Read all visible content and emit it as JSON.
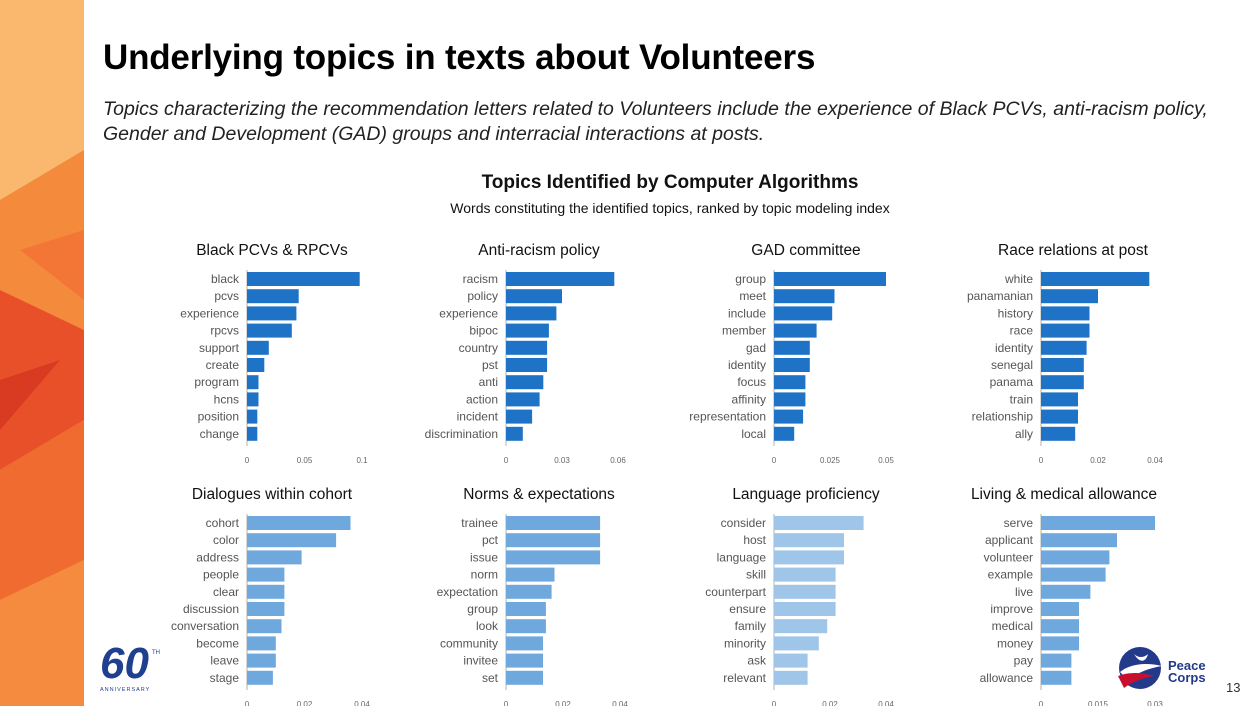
{
  "header": {
    "title": "Underlying topics in texts about Volunteers",
    "subtitle": "Topics characterizing the recommendation letters related to Volunteers include the experience of Black PCVs, anti-racism policy, Gender and Development (GAD) groups and interracial interactions at posts."
  },
  "chart": {
    "heading": "Topics Identified by Computer Algorithms",
    "subheading": "Words constituting the identified topics, ranked by topic modeling index"
  },
  "colors": {
    "top_row_bar": "#1f73c6",
    "bottom_row_bar": "#6fa8dc",
    "language_bar": "#9fc5e8",
    "axis_line": "#b0b0b0"
  },
  "footer": {
    "logo_line1": "Peace",
    "logo_line2": "Corps",
    "page_number": "13",
    "anniversary_logo_text": "60 TH ANNIVERSARY"
  },
  "chart_data": [
    {
      "type": "bar",
      "orientation": "horizontal",
      "title": "Black PCVs & RPCVs",
      "categories": [
        "black",
        "pcvs",
        "experience",
        "rpcvs",
        "support",
        "create",
        "program",
        "hcns",
        "position",
        "change"
      ],
      "values": [
        0.098,
        0.045,
        0.043,
        0.039,
        0.019,
        0.015,
        0.01,
        0.01,
        0.009,
        0.009
      ],
      "xlim": [
        0,
        0.1
      ],
      "xticks": [
        "0",
        "0.05",
        "0.1"
      ],
      "color": "#1f73c6"
    },
    {
      "type": "bar",
      "orientation": "horizontal",
      "title": "Anti-racism policy",
      "categories": [
        "racism",
        "policy",
        "experience",
        "bipoc",
        "country",
        "pst",
        "anti",
        "action",
        "incident",
        "discrimination"
      ],
      "values": [
        0.058,
        0.03,
        0.027,
        0.023,
        0.022,
        0.022,
        0.02,
        0.018,
        0.014,
        0.009
      ],
      "xlim": [
        0,
        0.06
      ],
      "xticks": [
        "0",
        "0.03",
        "0.06"
      ],
      "color": "#1f73c6"
    },
    {
      "type": "bar",
      "orientation": "horizontal",
      "title": "GAD committee",
      "categories": [
        "group",
        "meet",
        "include",
        "member",
        "gad",
        "identity",
        "focus",
        "affinity",
        "representation",
        "local"
      ],
      "values": [
        0.05,
        0.027,
        0.026,
        0.019,
        0.016,
        0.016,
        0.014,
        0.014,
        0.013,
        0.009
      ],
      "xlim": [
        0,
        0.05
      ],
      "xticks": [
        "0",
        "0.025",
        "0.05"
      ],
      "color": "#1f73c6"
    },
    {
      "type": "bar",
      "orientation": "horizontal",
      "title": "Race relations at post",
      "categories": [
        "white",
        "panamanian",
        "history",
        "race",
        "identity",
        "senegal",
        "panama",
        "train",
        "relationship",
        "ally"
      ],
      "values": [
        0.038,
        0.02,
        0.017,
        0.017,
        0.016,
        0.015,
        0.015,
        0.013,
        0.013,
        0.012
      ],
      "xlim": [
        0,
        0.04
      ],
      "xticks": [
        "0",
        "0.02",
        "0.04"
      ],
      "color": "#1f73c6"
    },
    {
      "type": "bar",
      "orientation": "horizontal",
      "title": "Dialogues within cohort",
      "categories": [
        "cohort",
        "color",
        "address",
        "people",
        "clear",
        "discussion",
        "conversation",
        "become",
        "leave",
        "stage"
      ],
      "values": [
        0.036,
        0.031,
        0.019,
        0.013,
        0.013,
        0.013,
        0.012,
        0.01,
        0.01,
        0.009
      ],
      "xlim": [
        0,
        0.04
      ],
      "xticks": [
        "0",
        "0.02",
        "0.04"
      ],
      "color": "#6fa8dc"
    },
    {
      "type": "bar",
      "orientation": "horizontal",
      "title": "Norms & expectations",
      "categories": [
        "trainee",
        "pct",
        "issue",
        "norm",
        "expectation",
        "group",
        "look",
        "community",
        "invitee",
        "set"
      ],
      "values": [
        0.033,
        0.033,
        0.033,
        0.017,
        0.016,
        0.014,
        0.014,
        0.013,
        0.013,
        0.013
      ],
      "xlim": [
        0,
        0.04
      ],
      "xticks": [
        "0",
        "0.02",
        "0.04"
      ],
      "color": "#6fa8dc"
    },
    {
      "type": "bar",
      "orientation": "horizontal",
      "title": "Language proficiency",
      "categories": [
        "consider",
        "host",
        "language",
        "skill",
        "counterpart",
        "ensure",
        "family",
        "minority",
        "ask",
        "relevant"
      ],
      "values": [
        0.032,
        0.025,
        0.025,
        0.022,
        0.022,
        0.022,
        0.019,
        0.016,
        0.012,
        0.012
      ],
      "xlim": [
        0,
        0.04
      ],
      "xticks": [
        "0",
        "0.02",
        "0.04"
      ],
      "color": "#9fc5e8"
    },
    {
      "type": "bar",
      "orientation": "horizontal",
      "title": "Living & medical allowance",
      "categories": [
        "serve",
        "applicant",
        "volunteer",
        "example",
        "live",
        "improve",
        "medical",
        "money",
        "pay",
        "allowance"
      ],
      "values": [
        0.03,
        0.02,
        0.018,
        0.017,
        0.013,
        0.01,
        0.01,
        0.01,
        0.008,
        0.008
      ],
      "xlim": [
        0,
        0.03
      ],
      "xticks": [
        "0",
        "0.015",
        "0.03"
      ],
      "color": "#6fa8dc"
    }
  ]
}
